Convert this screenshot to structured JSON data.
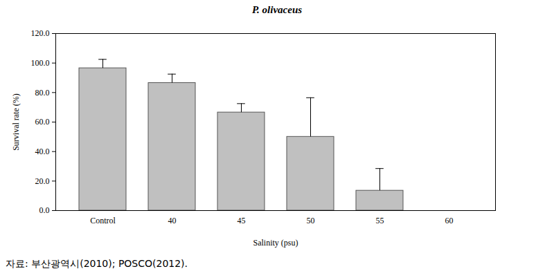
{
  "chart_data": {
    "type": "bar",
    "title": "P. olivaceus",
    "xlabel": "Salinity (psu)",
    "ylabel": "Survival rate (%)",
    "categories": [
      "Control",
      "40",
      "45",
      "50",
      "55",
      "60"
    ],
    "values": [
      96.5,
      86.5,
      66.5,
      50.0,
      13.5,
      0
    ],
    "errors": [
      6.0,
      6.0,
      6.0,
      26.5,
      15.0,
      0
    ],
    "color": "#c0c0c0",
    "ylim": [
      0,
      120
    ],
    "yticks": [
      {
        "value": 0,
        "label": "0.0"
      },
      {
        "value": 20,
        "label": "20.0"
      },
      {
        "value": 40,
        "label": "40.0"
      },
      {
        "value": 60,
        "label": "60.0"
      },
      {
        "value": 80,
        "label": "80.0"
      },
      {
        "value": 100,
        "label": "100.0"
      },
      {
        "value": 120,
        "label": "120.0"
      }
    ],
    "grid": false,
    "caption": "자료: 부산광역시(2010); POSCO(2012)."
  }
}
